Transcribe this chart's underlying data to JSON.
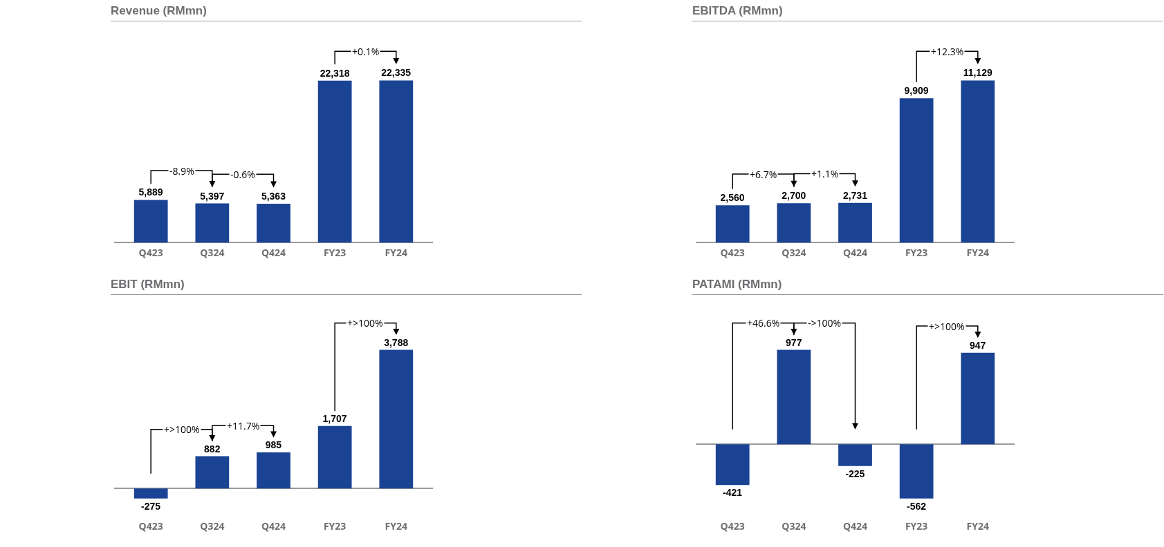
{
  "chart_data": [
    {
      "type": "bar",
      "title": "Revenue (RMmn)",
      "categories": [
        "Q423",
        "Q324",
        "Q424",
        "FY23",
        "FY24"
      ],
      "values": [
        5889,
        5397,
        5363,
        22318,
        22335
      ],
      "value_labels": [
        "5,889",
        "5,397",
        "5,363",
        "22,318",
        "22,335"
      ],
      "color": "#1a4394",
      "legend": false,
      "grid": false,
      "annotations": [
        "-8.9%",
        "-0.6%",
        "+0.1%"
      ]
    },
    {
      "type": "bar",
      "title": "EBITDA (RMmn)",
      "categories": [
        "Q423",
        "Q324",
        "Q424",
        "FY23",
        "FY24"
      ],
      "values": [
        2560,
        2700,
        2731,
        9909,
        11129
      ],
      "value_labels": [
        "2,560",
        "2,700",
        "2,731",
        "9,909",
        "11,129"
      ],
      "color": "#1a4394",
      "legend": false,
      "grid": false,
      "annotations": [
        "+6.7%",
        "+1.1%",
        "+12.3%"
      ]
    },
    {
      "type": "bar",
      "title": "EBIT (RMmn)",
      "categories": [
        "Q423",
        "Q324",
        "Q424",
        "FY23",
        "FY24"
      ],
      "values": [
        -275,
        882,
        985,
        1707,
        3788
      ],
      "value_labels": [
        "-275",
        "882",
        "985",
        "1,707",
        "3,788"
      ],
      "color": "#1a4394",
      "legend": false,
      "grid": false,
      "annotations": [
        "+>100%",
        "+11.7%",
        "+>100%"
      ]
    },
    {
      "type": "bar",
      "title": "PATAMI (RMmn)",
      "categories": [
        "Q423",
        "Q324",
        "Q424",
        "FY23",
        "FY24"
      ],
      "values": [
        -421,
        977,
        -225,
        -562,
        947
      ],
      "value_labels": [
        "-421",
        "977",
        "-225",
        "-562",
        "947"
      ],
      "color": "#1a4394",
      "legend": false,
      "grid": false,
      "annotations": [
        "+46.6%",
        "->100%",
        "+>100%"
      ]
    }
  ]
}
